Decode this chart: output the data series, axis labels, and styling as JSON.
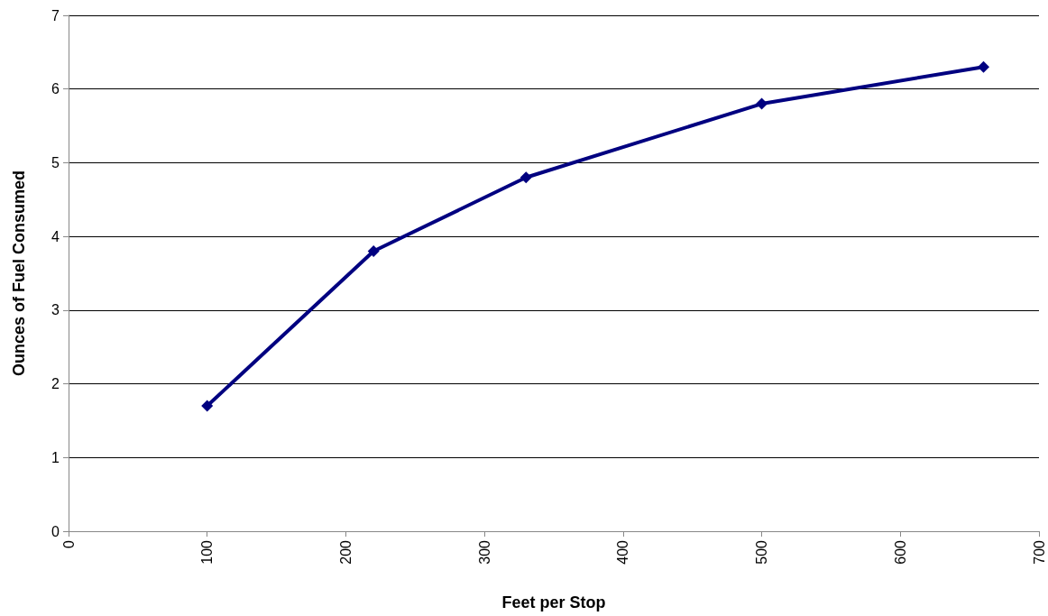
{
  "chart_data": {
    "type": "line",
    "xlabel": "Feet per Stop",
    "ylabel": "Ounces of Fuel Consumed",
    "x": [
      100,
      220,
      330,
      500,
      660
    ],
    "series": [
      {
        "color": "#000080",
        "values": [
          1.7,
          3.8,
          4.8,
          5.8,
          6.3
        ]
      }
    ],
    "xlim": [
      0,
      700
    ],
    "xticks": [
      0,
      100,
      200,
      300,
      400,
      500,
      600,
      700
    ],
    "ylim": [
      0,
      7
    ],
    "yticks": [
      0,
      1,
      2,
      3,
      4,
      5,
      6,
      7
    ],
    "grid": "y",
    "marker": "diamond",
    "line_style": "solid"
  }
}
